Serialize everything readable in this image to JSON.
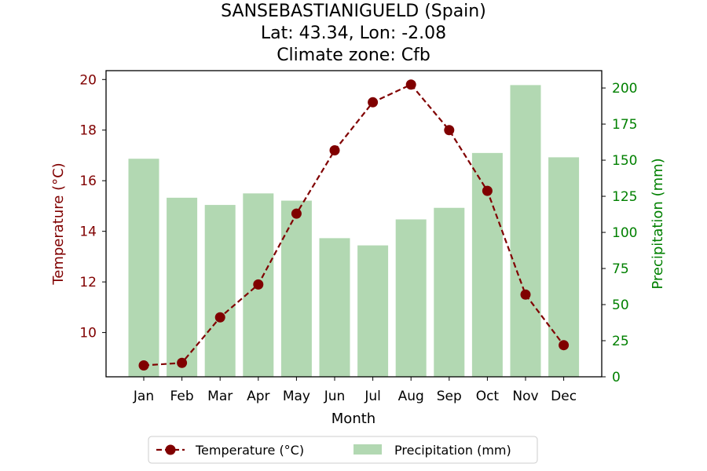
{
  "chart_data": {
    "type": "bar+line",
    "title_lines": [
      "SANSEBASTIANIGUELD (Spain)",
      "Lat: 43.34, Lon: -2.08",
      "Climate zone: Cfb"
    ],
    "xlabel": "Month",
    "ylabel_left": "Temperature (°C)",
    "ylabel_right": "Precipitation (mm)",
    "categories": [
      "Jan",
      "Feb",
      "Mar",
      "Apr",
      "May",
      "Jun",
      "Jul",
      "Aug",
      "Sep",
      "Oct",
      "Nov",
      "Dec"
    ],
    "series": [
      {
        "name": "Temperature (°C)",
        "type": "line",
        "axis": "left",
        "color": "#800000",
        "linestyle": "dashed",
        "marker": "circle",
        "values": [
          8.7,
          8.8,
          10.6,
          11.9,
          14.7,
          17.2,
          19.1,
          19.8,
          18.0,
          15.6,
          11.5,
          9.5
        ]
      },
      {
        "name": "Precipitation (mm)",
        "type": "bar",
        "axis": "right",
        "color": "#b2d8b2",
        "values": [
          151,
          124,
          119,
          127,
          122,
          96,
          91,
          109,
          117,
          155,
          202,
          152
        ]
      }
    ],
    "ylim_left": [
      8.25,
      20.35
    ],
    "yticks_left": [
      10,
      12,
      14,
      16,
      18,
      20
    ],
    "ylim_right": [
      0,
      212
    ],
    "yticks_right": [
      0,
      25,
      50,
      75,
      100,
      125,
      150,
      175,
      200
    ],
    "left_axis_color": "#800000",
    "right_axis_color": "#008000",
    "grid": false,
    "legend_position": "bottom-center"
  }
}
